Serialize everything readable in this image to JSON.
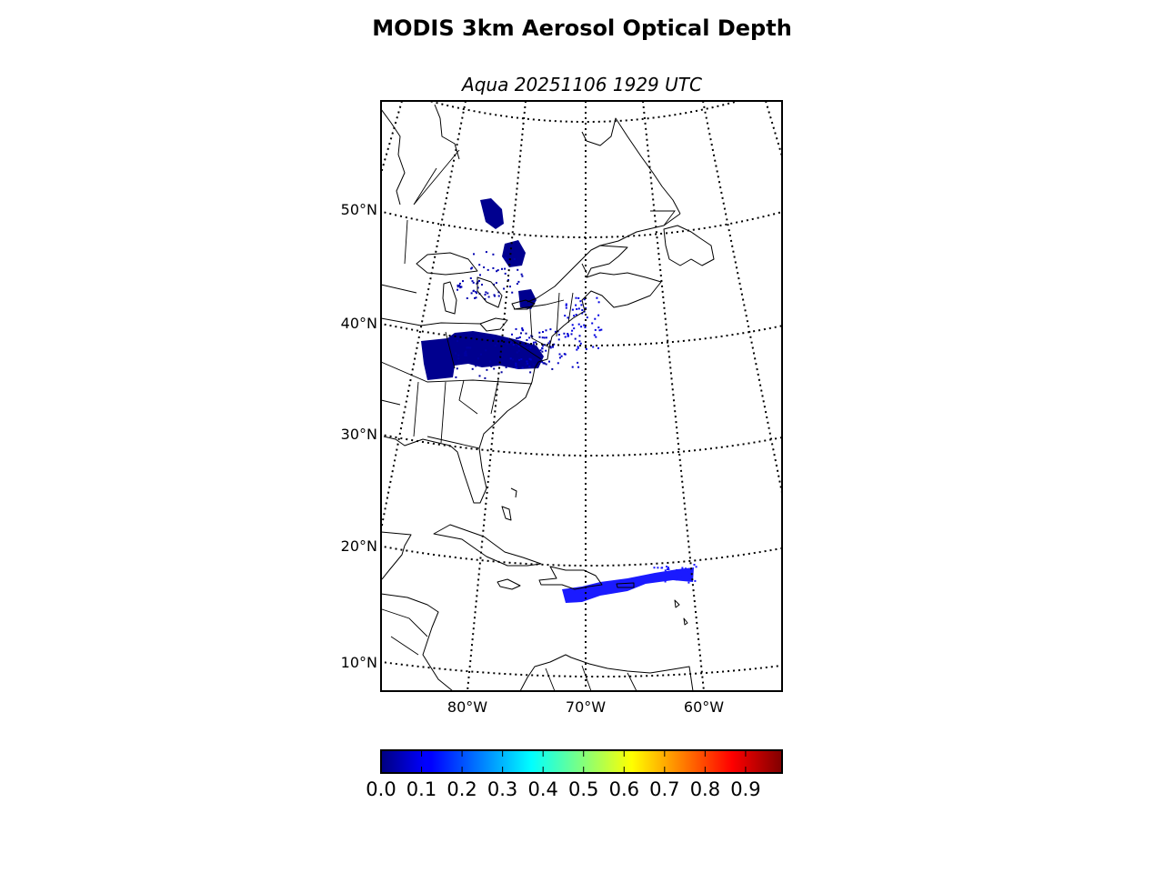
{
  "figure": {
    "title": "MODIS 3km Aerosol Optical Depth",
    "subtitle": "Aqua 20251106 1929 UTC"
  },
  "map": {
    "projection": "lambert-conformal",
    "lat_labels": [
      "50°N",
      "40°N",
      "30°N",
      "20°N",
      "10°N"
    ],
    "lon_labels": [
      "80°W",
      "70°W",
      "60°W"
    ],
    "parallels_deg": [
      60,
      50,
      40,
      30,
      20,
      10
    ],
    "meridians_deg": [
      -100,
      -90,
      -80,
      -70,
      -60,
      -50,
      -40
    ],
    "aod_colors": {
      "low": "#00008f",
      "mid": "#0000ff",
      "caribbean": "#1a1aff"
    }
  },
  "colorbar": {
    "colormap": "jet",
    "range": [
      0.0,
      0.99
    ],
    "tick_labels": [
      "0.0",
      "0.1",
      "0.2",
      "0.3",
      "0.4",
      "0.5",
      "0.6",
      "0.7",
      "0.8",
      "0.9"
    ],
    "colors": [
      "#00007f",
      "#0000ff",
      "#00ffff",
      "#ffff00",
      "#ff0000",
      "#7f0000"
    ]
  }
}
